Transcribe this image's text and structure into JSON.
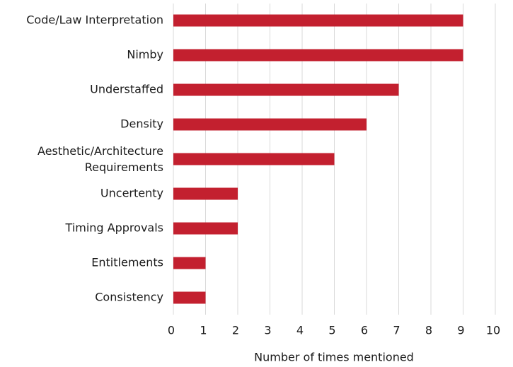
{
  "chart_data": {
    "type": "barh",
    "categories": [
      "Code/Law Interpretation",
      "Nimby",
      "Understaffed",
      "Density",
      "Aesthetic/Architecture Requirements",
      "Uncertenty",
      "Timing Approvals",
      "Entitlements",
      "Consistency"
    ],
    "values": [
      9,
      9,
      7,
      6,
      5,
      2,
      2,
      1,
      1
    ],
    "color": "#c3202f",
    "xlabel": "Number of times mentioned",
    "xlim": [
      0,
      10
    ],
    "xticks": [
      0,
      1,
      2,
      3,
      4,
      5,
      6,
      7,
      8,
      9,
      10
    ],
    "grid": true
  }
}
